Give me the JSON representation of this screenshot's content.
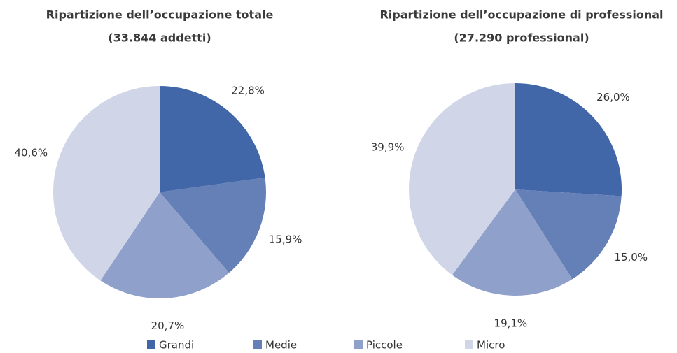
{
  "legend": {
    "categories": [
      "Grandi",
      "Medie",
      "Piccole",
      "Micro"
    ],
    "colors": [
      "#4267a8",
      "#6580b7",
      "#8fa1cb",
      "#d0d5e8"
    ]
  },
  "chart_data": [
    {
      "type": "pie",
      "title": "Ripartizione dell’occupazione totale",
      "subtitle": "(33.844 addetti)",
      "values": [
        22.8,
        15.9,
        20.7,
        40.6
      ],
      "value_labels": [
        "22,8%",
        "15,9%",
        "20,7%",
        "40,6%"
      ]
    },
    {
      "type": "pie",
      "title": "Ripartizione dell’occupazione di professional",
      "subtitle": "(27.290 professional)",
      "values": [
        26.0,
        15.0,
        19.1,
        39.9
      ],
      "value_labels": [
        "26,0%",
        "15,0%",
        "19,1%",
        "39,9%"
      ]
    }
  ]
}
